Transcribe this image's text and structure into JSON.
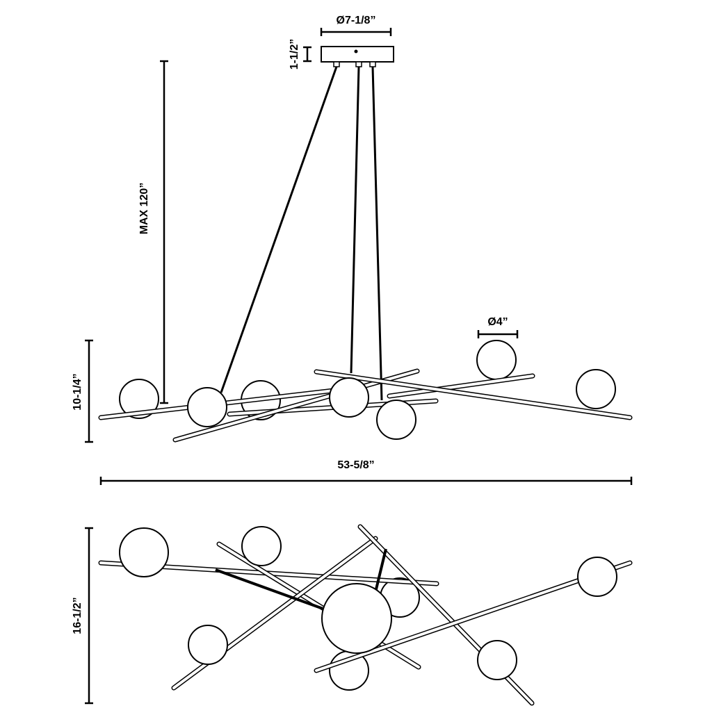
{
  "dimensions": {
    "canopy_diameter": "Ø7-1/8”",
    "canopy_height": "1-1/2”",
    "max_height": "MAX 120”",
    "globe_diameter": "Ø4”",
    "fixture_height": "10-1/4”",
    "width": "53-5/8”",
    "depth": "16-1/2”"
  }
}
